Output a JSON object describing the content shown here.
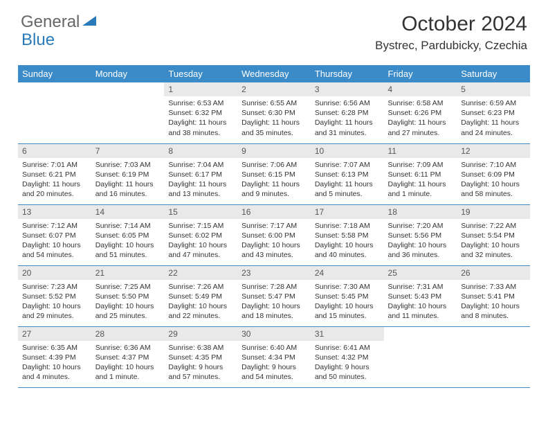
{
  "logo": {
    "part1": "General",
    "part2": "Blue",
    "tri_color": "#2a7ab9"
  },
  "header": {
    "title": "October 2024",
    "location": "Bystrec, Pardubicky, Czechia"
  },
  "colors": {
    "header_bg": "#3b8bc9",
    "daynum_bg": "#e9e9e9",
    "border": "#3b8bc9",
    "text": "#333333",
    "logo_gray": "#666666",
    "logo_blue": "#2a7ab9",
    "bg": "#ffffff"
  },
  "dayNames": [
    "Sunday",
    "Monday",
    "Tuesday",
    "Wednesday",
    "Thursday",
    "Friday",
    "Saturday"
  ],
  "weeks": [
    [
      {
        "empty": true
      },
      {
        "empty": true
      },
      {
        "num": "1",
        "sunrise": "6:53 AM",
        "sunset": "6:32 PM",
        "daylight": "11 hours and 38 minutes."
      },
      {
        "num": "2",
        "sunrise": "6:55 AM",
        "sunset": "6:30 PM",
        "daylight": "11 hours and 35 minutes."
      },
      {
        "num": "3",
        "sunrise": "6:56 AM",
        "sunset": "6:28 PM",
        "daylight": "11 hours and 31 minutes."
      },
      {
        "num": "4",
        "sunrise": "6:58 AM",
        "sunset": "6:26 PM",
        "daylight": "11 hours and 27 minutes."
      },
      {
        "num": "5",
        "sunrise": "6:59 AM",
        "sunset": "6:23 PM",
        "daylight": "11 hours and 24 minutes."
      }
    ],
    [
      {
        "num": "6",
        "sunrise": "7:01 AM",
        "sunset": "6:21 PM",
        "daylight": "11 hours and 20 minutes."
      },
      {
        "num": "7",
        "sunrise": "7:03 AM",
        "sunset": "6:19 PM",
        "daylight": "11 hours and 16 minutes."
      },
      {
        "num": "8",
        "sunrise": "7:04 AM",
        "sunset": "6:17 PM",
        "daylight": "11 hours and 13 minutes."
      },
      {
        "num": "9",
        "sunrise": "7:06 AM",
        "sunset": "6:15 PM",
        "daylight": "11 hours and 9 minutes."
      },
      {
        "num": "10",
        "sunrise": "7:07 AM",
        "sunset": "6:13 PM",
        "daylight": "11 hours and 5 minutes."
      },
      {
        "num": "11",
        "sunrise": "7:09 AM",
        "sunset": "6:11 PM",
        "daylight": "11 hours and 1 minute."
      },
      {
        "num": "12",
        "sunrise": "7:10 AM",
        "sunset": "6:09 PM",
        "daylight": "10 hours and 58 minutes."
      }
    ],
    [
      {
        "num": "13",
        "sunrise": "7:12 AM",
        "sunset": "6:07 PM",
        "daylight": "10 hours and 54 minutes."
      },
      {
        "num": "14",
        "sunrise": "7:14 AM",
        "sunset": "6:05 PM",
        "daylight": "10 hours and 51 minutes."
      },
      {
        "num": "15",
        "sunrise": "7:15 AM",
        "sunset": "6:02 PM",
        "daylight": "10 hours and 47 minutes."
      },
      {
        "num": "16",
        "sunrise": "7:17 AM",
        "sunset": "6:00 PM",
        "daylight": "10 hours and 43 minutes."
      },
      {
        "num": "17",
        "sunrise": "7:18 AM",
        "sunset": "5:58 PM",
        "daylight": "10 hours and 40 minutes."
      },
      {
        "num": "18",
        "sunrise": "7:20 AM",
        "sunset": "5:56 PM",
        "daylight": "10 hours and 36 minutes."
      },
      {
        "num": "19",
        "sunrise": "7:22 AM",
        "sunset": "5:54 PM",
        "daylight": "10 hours and 32 minutes."
      }
    ],
    [
      {
        "num": "20",
        "sunrise": "7:23 AM",
        "sunset": "5:52 PM",
        "daylight": "10 hours and 29 minutes."
      },
      {
        "num": "21",
        "sunrise": "7:25 AM",
        "sunset": "5:50 PM",
        "daylight": "10 hours and 25 minutes."
      },
      {
        "num": "22",
        "sunrise": "7:26 AM",
        "sunset": "5:49 PM",
        "daylight": "10 hours and 22 minutes."
      },
      {
        "num": "23",
        "sunrise": "7:28 AM",
        "sunset": "5:47 PM",
        "daylight": "10 hours and 18 minutes."
      },
      {
        "num": "24",
        "sunrise": "7:30 AM",
        "sunset": "5:45 PM",
        "daylight": "10 hours and 15 minutes."
      },
      {
        "num": "25",
        "sunrise": "7:31 AM",
        "sunset": "5:43 PM",
        "daylight": "10 hours and 11 minutes."
      },
      {
        "num": "26",
        "sunrise": "7:33 AM",
        "sunset": "5:41 PM",
        "daylight": "10 hours and 8 minutes."
      }
    ],
    [
      {
        "num": "27",
        "sunrise": "6:35 AM",
        "sunset": "4:39 PM",
        "daylight": "10 hours and 4 minutes."
      },
      {
        "num": "28",
        "sunrise": "6:36 AM",
        "sunset": "4:37 PM",
        "daylight": "10 hours and 1 minute."
      },
      {
        "num": "29",
        "sunrise": "6:38 AM",
        "sunset": "4:35 PM",
        "daylight": "9 hours and 57 minutes."
      },
      {
        "num": "30",
        "sunrise": "6:40 AM",
        "sunset": "4:34 PM",
        "daylight": "9 hours and 54 minutes."
      },
      {
        "num": "31",
        "sunrise": "6:41 AM",
        "sunset": "4:32 PM",
        "daylight": "9 hours and 50 minutes."
      },
      {
        "empty": true
      },
      {
        "empty": true
      }
    ]
  ],
  "labels": {
    "sunrise": "Sunrise:",
    "sunset": "Sunset:",
    "daylight": "Daylight:"
  }
}
